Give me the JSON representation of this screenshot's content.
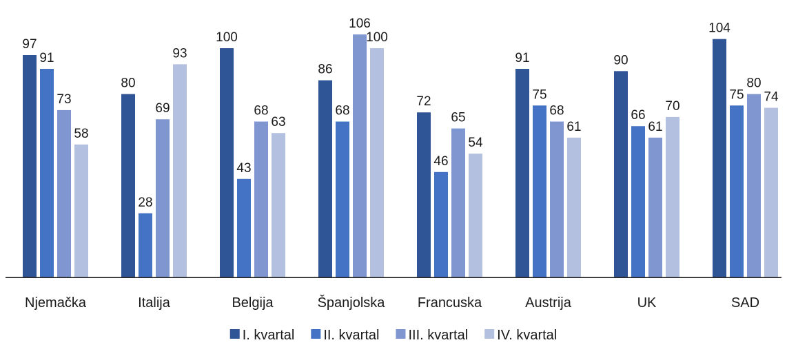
{
  "chart_data": {
    "type": "bar",
    "title": "",
    "xlabel": "",
    "ylabel": "",
    "ylim": [
      0,
      110
    ],
    "grid": false,
    "legend_position": "bottom",
    "categories": [
      "Njemačka",
      "Italija",
      "Belgija",
      "Španjolska",
      "Francuska",
      "Austrija",
      "UK",
      "SAD"
    ],
    "series": [
      {
        "name": "I. kvartal",
        "color": "#2f5597",
        "values": [
          97,
          80,
          100,
          86,
          72,
          91,
          90,
          104
        ]
      },
      {
        "name": "II. kvartal",
        "color": "#4472c4",
        "values": [
          91,
          28,
          43,
          68,
          46,
          75,
          66,
          75
        ]
      },
      {
        "name": "III. kvartal",
        "color": "#7f96d1",
        "values": [
          73,
          69,
          68,
          106,
          65,
          68,
          61,
          80
        ]
      },
      {
        "name": "IV. kvartal",
        "color": "#b4c0df",
        "values": [
          58,
          93,
          63,
          100,
          54,
          61,
          70,
          74
        ]
      }
    ]
  }
}
